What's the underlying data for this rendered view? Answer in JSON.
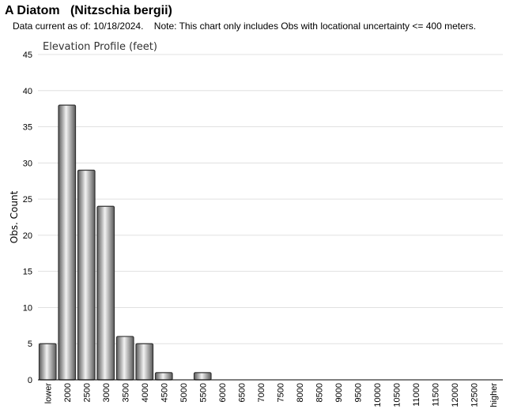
{
  "header": {
    "title": "A Diatom   (Nitzschia bergii)",
    "note": "Data current as of: 10/18/2024.    Note: This chart only includes Obs with locational uncertainty <= 400 meters."
  },
  "chart_data": {
    "type": "bar",
    "title": "Elevation Profile (feet)",
    "xlabel": "",
    "ylabel": "Obs. Count",
    "ylim": [
      0,
      45
    ],
    "yticks": [
      0,
      5,
      10,
      15,
      20,
      25,
      30,
      35,
      40,
      45
    ],
    "grid": true,
    "categories": [
      "lower",
      "2000",
      "2500",
      "3000",
      "3500",
      "4000",
      "4500",
      "5000",
      "5500",
      "6000",
      "6500",
      "7000",
      "7500",
      "8000",
      "8500",
      "9000",
      "9500",
      "10000",
      "10500",
      "11000",
      "11500",
      "12000",
      "12500",
      "higher"
    ],
    "values": [
      5,
      38,
      29,
      24,
      6,
      5,
      1,
      0,
      1,
      0,
      0,
      0,
      0,
      0,
      0,
      0,
      0,
      0,
      0,
      0,
      0,
      0,
      0,
      0
    ],
    "colors": {
      "bar_dark": "#5a5a5a",
      "bar_light": "#f2f2f2",
      "bar_stroke": "#333333",
      "grid": "#e0e0e0",
      "axis": "#000000"
    }
  }
}
